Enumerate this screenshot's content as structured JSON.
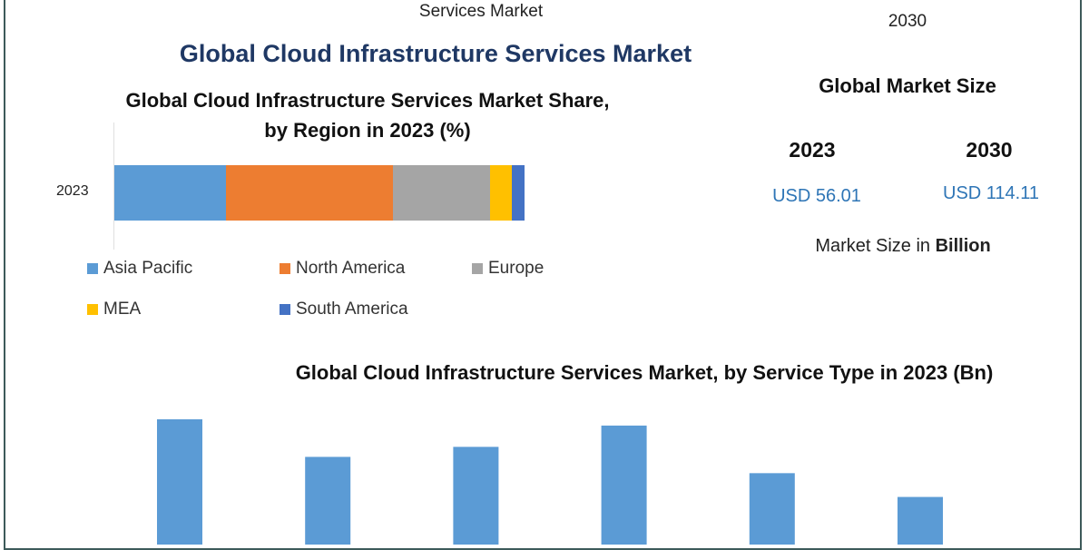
{
  "header": {
    "partial_left": "Services Market",
    "partial_right_line2": "2030",
    "main_title": "Global Cloud Infrastructure Services Market"
  },
  "market_size": {
    "heading": "Global Market Size",
    "years": [
      "2023",
      "2030"
    ],
    "values": [
      "USD 56.01",
      "USD 114.11"
    ],
    "note_prefix": "Market Size in ",
    "note_unit": "Billion"
  },
  "chart_data": [
    {
      "type": "bar",
      "orientation": "horizontal-stacked",
      "title": "Global Cloud Infrastructure Services Market Share, by Region in 2023 (%)",
      "categories": [
        "2023"
      ],
      "series": [
        {
          "name": "Asia Pacific",
          "values": [
            27.2
          ],
          "color": "#5b9bd5"
        },
        {
          "name": "North America",
          "values": [
            40.7
          ],
          "color": "#ed7d31"
        },
        {
          "name": "Europe",
          "values": [
            23.7
          ],
          "color": "#a5a5a5"
        },
        {
          "name": "MEA",
          "values": [
            5.3
          ],
          "color": "#ffc000"
        },
        {
          "name": "South America",
          "values": [
            3.1
          ],
          "color": "#4472c4"
        }
      ],
      "legend": "bottom",
      "grid": false
    },
    {
      "type": "bar",
      "title": "Global Cloud Infrastructure Services Market, by Service Type in 2023 (Bn)",
      "values_relative": [
        1.0,
        0.7,
        0.78,
        0.95,
        0.57,
        0.38
      ],
      "color": "#5b9bd5",
      "grid": false
    }
  ]
}
